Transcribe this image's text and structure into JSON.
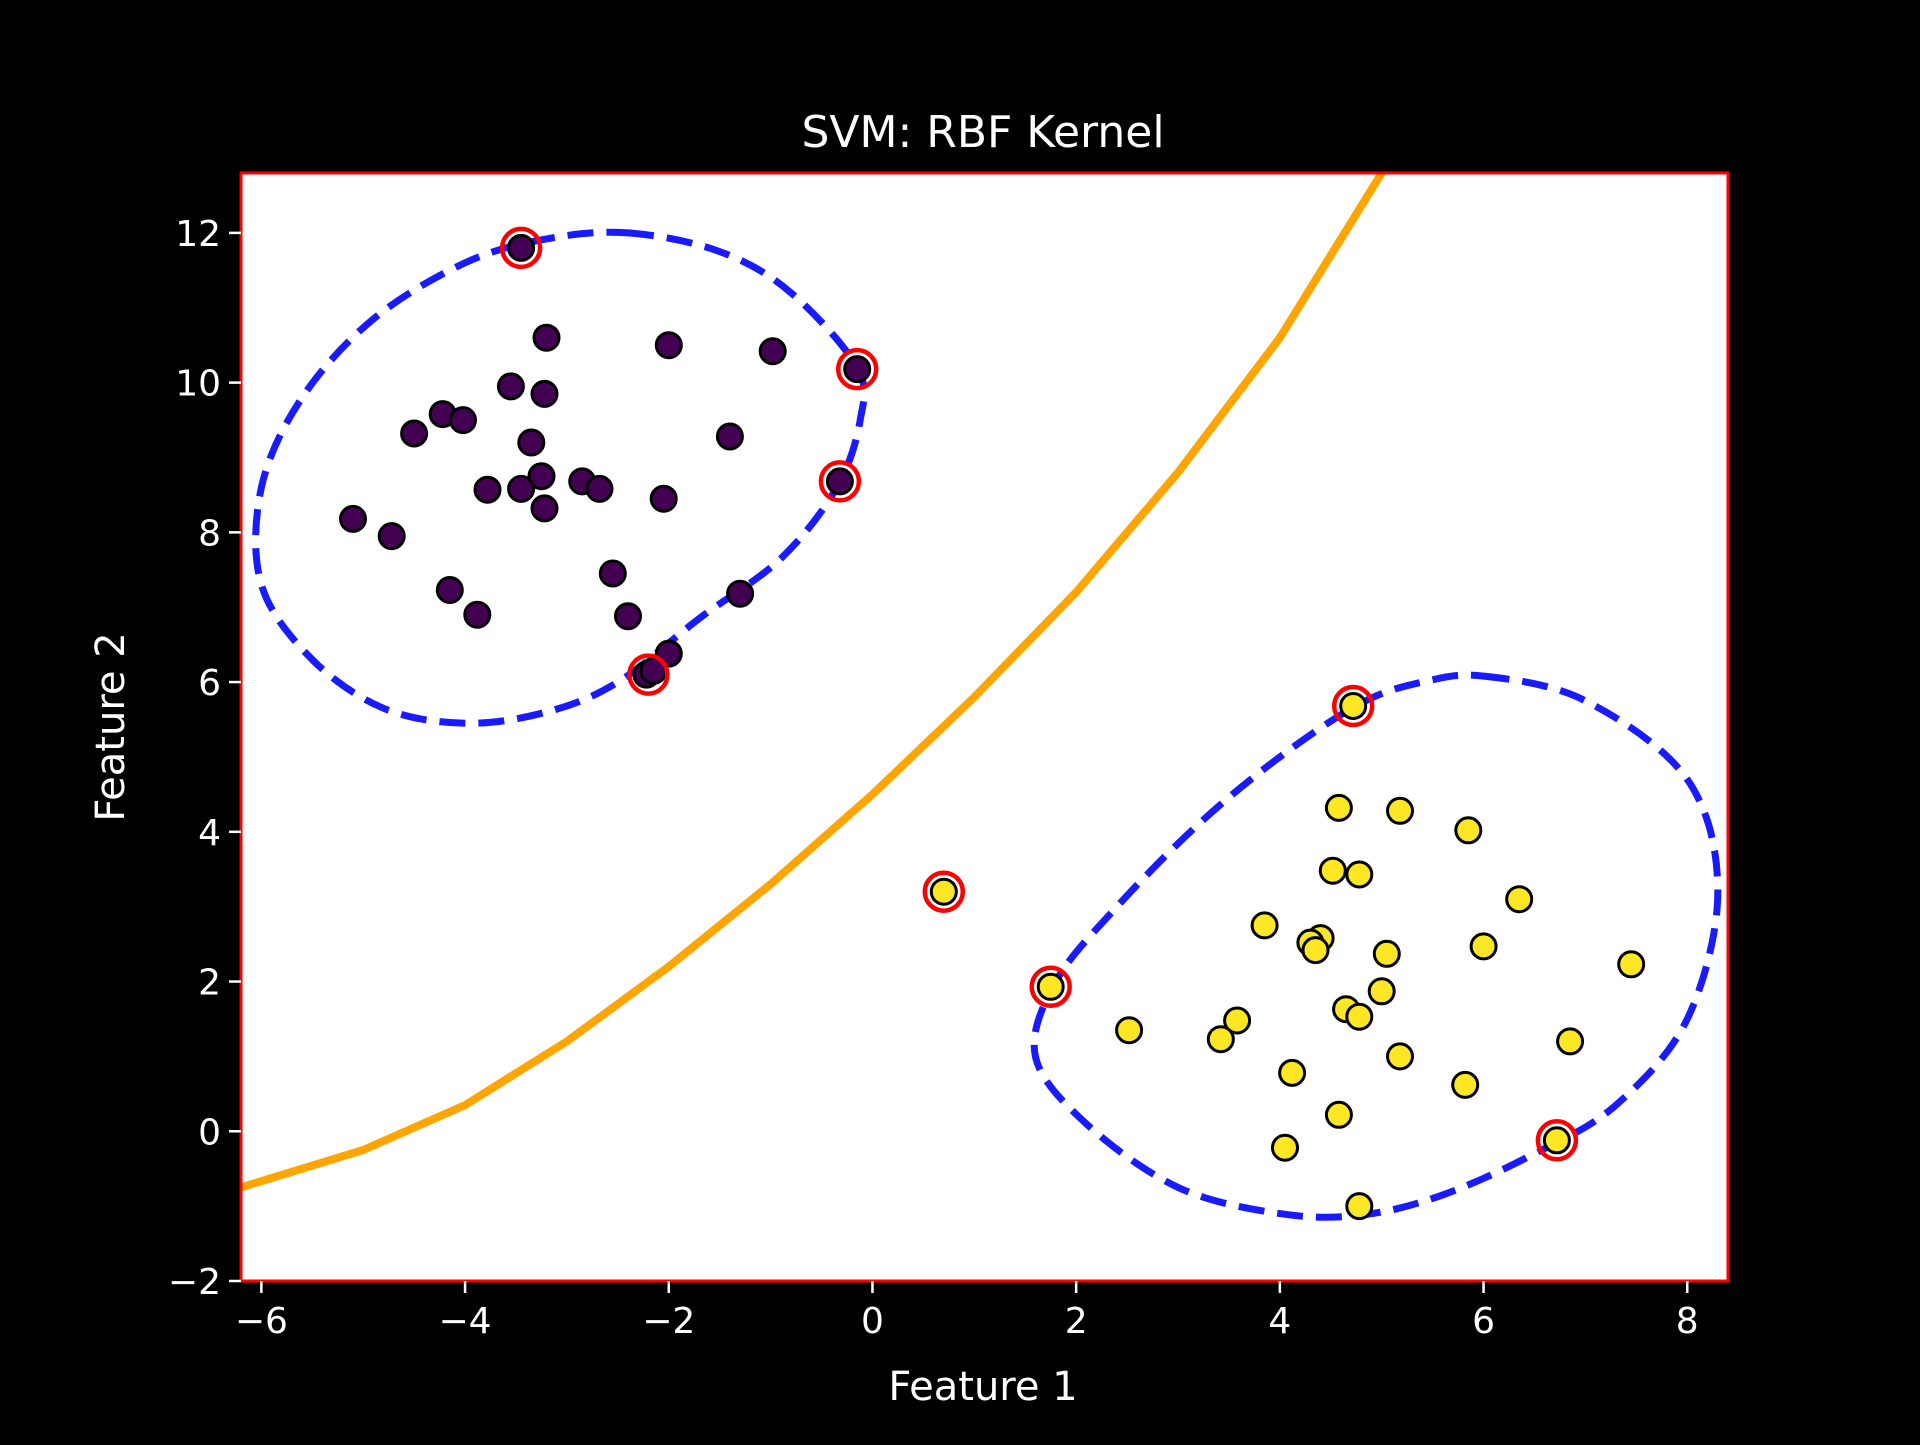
{
  "chart_data": {
    "type": "scatter",
    "title": "SVM: RBF Kernel",
    "xlabel": "Feature 1",
    "ylabel": "Feature 2",
    "xlim": [
      -6.2,
      8.4
    ],
    "ylim": [
      -2.0,
      12.8
    ],
    "x_ticks": [
      -6,
      -4,
      -2,
      0,
      2,
      4,
      6,
      8
    ],
    "y_ticks": [
      -2,
      0,
      2,
      4,
      6,
      8,
      10,
      12
    ],
    "x_tick_labels": [
      "−6",
      "−4",
      "−2",
      "0",
      "2",
      "4",
      "6",
      "8"
    ],
    "y_tick_labels": [
      "−2",
      "0",
      "2",
      "4",
      "6",
      "8",
      "10",
      "12"
    ],
    "grid": false,
    "colors": {
      "background": "#000000",
      "plot_area": "#ffffff",
      "plot_border": "#ff0000",
      "class_0": "#440154",
      "class_1": "#fde725",
      "decision_boundary": "#ffa500",
      "margin": "#1a1aff",
      "support_vector_ring": "#ff0000"
    },
    "series": [
      {
        "class": 0,
        "points": [
          [
            -3.45,
            11.8
          ],
          [
            -3.2,
            10.6
          ],
          [
            -2.0,
            10.5
          ],
          [
            -0.98,
            10.42
          ],
          [
            -0.15,
            10.18
          ],
          [
            -3.55,
            9.95
          ],
          [
            -3.22,
            9.85
          ],
          [
            -4.22,
            9.58
          ],
          [
            -4.02,
            9.5
          ],
          [
            -4.5,
            9.32
          ],
          [
            -1.4,
            9.28
          ],
          [
            -3.35,
            9.2
          ],
          [
            -3.25,
            8.75
          ],
          [
            -2.85,
            8.68
          ],
          [
            -0.32,
            8.68
          ],
          [
            -3.78,
            8.57
          ],
          [
            -3.45,
            8.58
          ],
          [
            -2.68,
            8.58
          ],
          [
            -2.05,
            8.45
          ],
          [
            -3.22,
            8.32
          ],
          [
            -5.1,
            8.18
          ],
          [
            -4.72,
            7.95
          ],
          [
            -2.55,
            7.45
          ],
          [
            -4.15,
            7.23
          ],
          [
            -1.3,
            7.18
          ],
          [
            -3.88,
            6.9
          ],
          [
            -2.4,
            6.88
          ],
          [
            -2.0,
            6.38
          ],
          [
            -2.22,
            6.1
          ],
          [
            -2.15,
            6.15
          ]
        ]
      },
      {
        "class": 1,
        "points": [
          [
            4.72,
            5.68
          ],
          [
            4.58,
            4.32
          ],
          [
            5.18,
            4.28
          ],
          [
            5.85,
            4.02
          ],
          [
            4.52,
            3.48
          ],
          [
            4.78,
            3.43
          ],
          [
            0.7,
            3.2
          ],
          [
            6.35,
            3.1
          ],
          [
            3.85,
            2.75
          ],
          [
            4.4,
            2.58
          ],
          [
            4.3,
            2.52
          ],
          [
            4.35,
            2.42
          ],
          [
            6.0,
            2.47
          ],
          [
            5.05,
            2.37
          ],
          [
            7.45,
            2.23
          ],
          [
            1.75,
            1.93
          ],
          [
            5.0,
            1.87
          ],
          [
            4.65,
            1.63
          ],
          [
            4.78,
            1.53
          ],
          [
            3.58,
            1.48
          ],
          [
            2.52,
            1.35
          ],
          [
            3.42,
            1.23
          ],
          [
            6.85,
            1.2
          ],
          [
            5.18,
            1.0
          ],
          [
            4.12,
            0.78
          ],
          [
            5.82,
            0.62
          ],
          [
            4.58,
            0.22
          ],
          [
            6.72,
            -0.12
          ],
          [
            4.05,
            -0.22
          ],
          [
            4.78,
            -1.0
          ]
        ]
      }
    ],
    "support_vectors": [
      [
        -3.45,
        11.8
      ],
      [
        -0.15,
        10.18
      ],
      [
        -0.32,
        8.68
      ],
      [
        -2.2,
        6.1
      ],
      [
        4.72,
        5.68
      ],
      [
        0.7,
        3.2
      ],
      [
        1.75,
        1.93
      ],
      [
        6.72,
        -0.12
      ]
    ],
    "decision_boundary": [
      [
        -6.2,
        -0.75
      ],
      [
        -5.0,
        -0.25
      ],
      [
        -4.0,
        0.35
      ],
      [
        -3.0,
        1.2
      ],
      [
        -2.0,
        2.2
      ],
      [
        -1.0,
        3.3
      ],
      [
        0.0,
        4.5
      ],
      [
        1.0,
        5.8
      ],
      [
        2.0,
        7.2
      ],
      [
        3.0,
        8.8
      ],
      [
        4.0,
        10.6
      ],
      [
        5.0,
        12.8
      ]
    ],
    "margin_contours": [
      [
        [
          -2.4,
          12.0
        ],
        [
          -1.5,
          11.75
        ],
        [
          -0.8,
          11.2
        ],
        [
          -0.15,
          10.2
        ],
        [
          -0.12,
          9.5
        ],
        [
          -0.35,
          8.6
        ],
        [
          -0.9,
          7.65
        ],
        [
          -1.7,
          6.85
        ],
        [
          -2.5,
          6.0
        ],
        [
          -3.2,
          5.6
        ],
        [
          -4.0,
          5.45
        ],
        [
          -4.8,
          5.65
        ],
        [
          -5.5,
          6.3
        ],
        [
          -6.0,
          7.3
        ],
        [
          -6.0,
          8.6
        ],
        [
          -5.6,
          9.8
        ],
        [
          -4.9,
          10.85
        ],
        [
          -4.0,
          11.6
        ],
        [
          -3.2,
          11.92
        ],
        [
          -2.4,
          12.0
        ]
      ],
      [
        [
          6.0,
          6.08
        ],
        [
          7.0,
          5.75
        ],
        [
          8.0,
          4.7
        ],
        [
          8.3,
          3.2
        ],
        [
          8.0,
          1.5
        ],
        [
          7.3,
          0.35
        ],
        [
          6.5,
          -0.3
        ],
        [
          5.6,
          -0.85
        ],
        [
          4.8,
          -1.12
        ],
        [
          4.0,
          -1.1
        ],
        [
          3.0,
          -0.75
        ],
        [
          2.1,
          0.1
        ],
        [
          1.6,
          1.0
        ],
        [
          1.8,
          2.0
        ],
        [
          2.4,
          3.0
        ],
        [
          3.2,
          4.1
        ],
        [
          4.0,
          5.0
        ],
        [
          4.8,
          5.72
        ],
        [
          5.4,
          6.0
        ],
        [
          6.0,
          6.08
        ]
      ]
    ]
  }
}
